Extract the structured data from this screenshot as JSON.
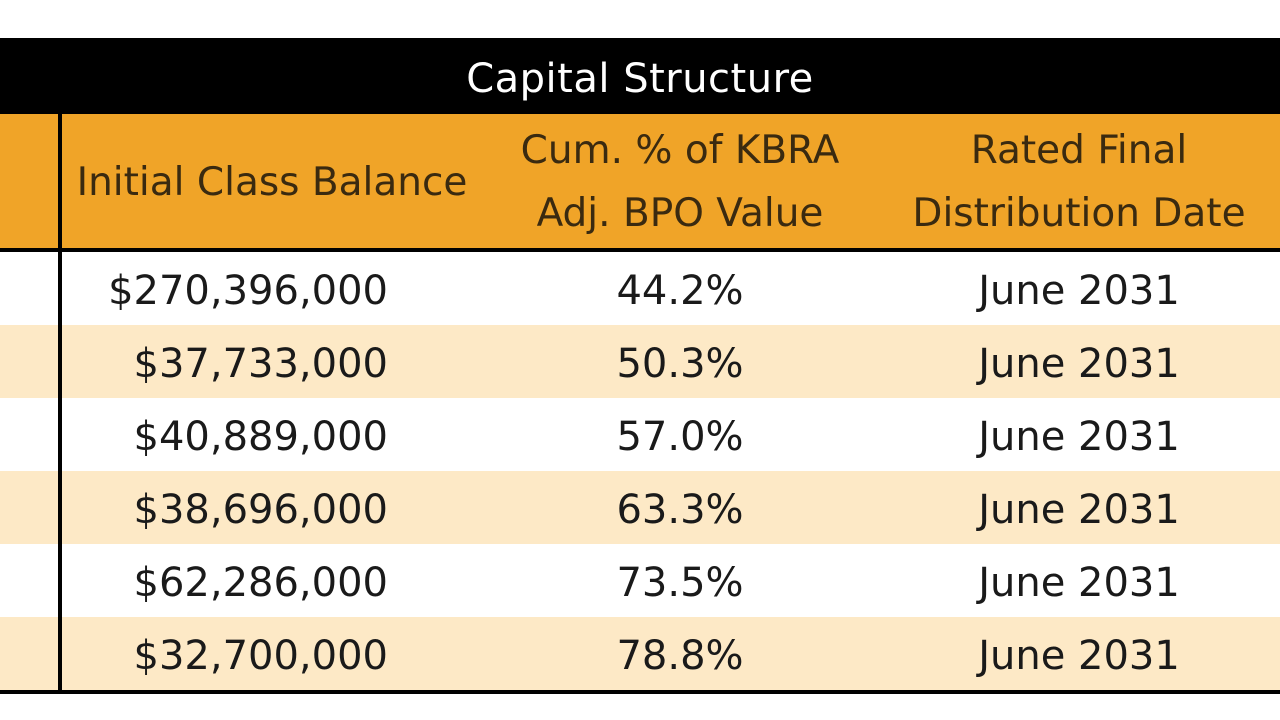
{
  "table": {
    "title": "Capital Structure",
    "headers": {
      "lead": "",
      "balance": "Initial Class Balance",
      "cum_line1": "Cum. % of KBRA",
      "cum_line2": "Adj. BPO Value",
      "date_line1": "Rated Final",
      "date_line2": "Distribution Date"
    },
    "rows": [
      {
        "balance": "$270,396,000",
        "cum": "44.2%",
        "date": "June 2031"
      },
      {
        "balance": "$37,733,000",
        "cum": "50.3%",
        "date": "June 2031"
      },
      {
        "balance": "$40,889,000",
        "cum": "57.0%",
        "date": "June 2031"
      },
      {
        "balance": "$38,696,000",
        "cum": "63.3%",
        "date": "June 2031"
      },
      {
        "balance": "$62,286,000",
        "cum": "73.5%",
        "date": "June 2031"
      },
      {
        "balance": "$32,700,000",
        "cum": "78.8%",
        "date": "June 2031"
      }
    ]
  },
  "colors": {
    "title_bg": "#000000",
    "header_bg": "#f0a428",
    "stripe": "#fde9c6"
  }
}
